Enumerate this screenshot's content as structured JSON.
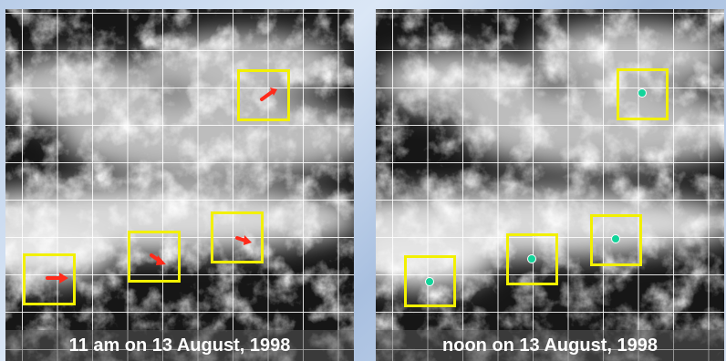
{
  "panels": [
    {
      "caption": "11 am on 13 August, 1998",
      "marker_color": "#ff2a1a",
      "box_color": "#f2f000"
    },
    {
      "caption": "noon on 13 August, 1998",
      "marker_color": "#12d49a",
      "box_color": "#f2f000"
    }
  ],
  "icons": {
    "left_markers": "arrow-icon",
    "right_markers": "dot-icon"
  }
}
